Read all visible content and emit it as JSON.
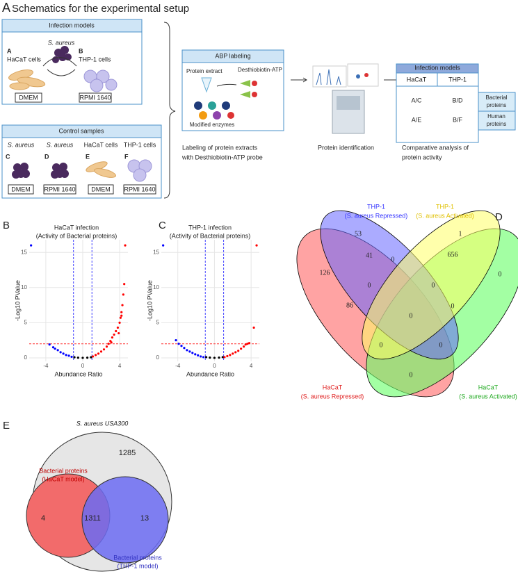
{
  "panel_a": {
    "letter": "A",
    "title": "Schematics for the experimental setup",
    "infection": {
      "header": "Infection models",
      "a": "A",
      "b": "B",
      "hacat": "HaCaT cells",
      "saureus": "S. aureus",
      "thp1": "THP-1 cells",
      "dmem": "DMEM",
      "rpmi": "RPMI 1640"
    },
    "control": {
      "header": "Control samples",
      "letters": [
        "C",
        "D",
        "E",
        "F"
      ],
      "names": [
        "S. aureus",
        "S. aureus",
        "HaCaT cells",
        "THP-1 cells"
      ],
      "media": [
        "DMEM",
        "RPMI 1640",
        "DMEM",
        "RPMI 1640"
      ]
    },
    "abp": {
      "header": "ABP labeling",
      "extract": "Protein extract",
      "probe": "Desthiobiotin-ATP",
      "enzymes": "Modified enzymes",
      "caption": [
        "Labeling of protein extracts",
        "with Desthiobiotin-ATP probe"
      ]
    },
    "identification": "Protein identification",
    "table": {
      "header": "Infection models",
      "cols": [
        "HaCaT",
        "THP-1"
      ],
      "rows": [
        [
          "A/C",
          "B/D"
        ],
        [
          "A/E",
          "B/F"
        ]
      ],
      "side": [
        [
          "Bacterial",
          "proteins"
        ],
        [
          "Human",
          "proteins"
        ]
      ]
    },
    "comparative": [
      "Comparative analysis of",
      "protein activity"
    ]
  },
  "volcanoes": [
    {
      "type": "scatter",
      "letter": "B",
      "title": [
        "HaCaT infection",
        "(Activity of Bacterial proteins)"
      ],
      "xlabel": "Abundance Ratio",
      "ylabel": "-Log10 PValue",
      "xlim": [
        -5.8,
        4.9
      ],
      "ylim": [
        -0.5,
        16.8
      ],
      "xticks": [
        -4,
        0,
        4
      ],
      "yticks": [
        0,
        5,
        10,
        15
      ],
      "grid": true,
      "thresholds": {
        "x": [
          -1,
          1
        ],
        "y": 2
      },
      "series": [
        {
          "color": "#0000ff",
          "x": [
            -5.6,
            -3.6,
            -3.2,
            -3,
            -2.7,
            -2.4,
            -2.1,
            -1.8,
            -1.5,
            -1.2
          ],
          "values": [
            16,
            1.9,
            1.5,
            1.3,
            1.1,
            0.8,
            0.6,
            0.4,
            0.3,
            0.15
          ]
        },
        {
          "color": "#000000",
          "x": [
            -0.9,
            -0.5,
            0,
            0.5,
            0.9
          ],
          "values": [
            0.08,
            0.02,
            0,
            0.02,
            0.08
          ]
        },
        {
          "color": "#ff0000",
          "x": [
            1.1,
            1.4,
            1.7,
            2,
            2.3,
            2.6,
            2.8,
            3,
            3.2,
            3.4,
            3.6,
            3.8,
            4,
            4.1,
            4.2,
            4.3,
            4.4,
            4.5,
            4.6,
            3.1,
            3.9,
            4.2
          ],
          "values": [
            0.2,
            0.4,
            0.6,
            0.9,
            1.2,
            1.6,
            2,
            2.4,
            2.9,
            3.3,
            3.8,
            4.3,
            5,
            5.7,
            6.5,
            7.5,
            9,
            10.5,
            16,
            2.2,
            3.5,
            6
          ]
        }
      ]
    },
    {
      "type": "scatter",
      "letter": "C",
      "title": [
        "THP-1 infection",
        "(Activity of Bacterial proteins)"
      ],
      "xlabel": "Abundance Ratio",
      "ylabel": "-Log10 PValue",
      "xlim": [
        -5.8,
        4.9
      ],
      "ylim": [
        -0.5,
        16.8
      ],
      "xticks": [
        -4,
        0,
        4
      ],
      "yticks": [
        0,
        5,
        10,
        15
      ],
      "grid": true,
      "thresholds": {
        "x": [
          -1,
          1
        ],
        "y": 2
      },
      "series": [
        {
          "color": "#0000ff",
          "x": [
            -5.6,
            -4.2,
            -3.9,
            -3.6,
            -3.3,
            -3,
            -2.7,
            -2.4,
            -2.1,
            -1.8,
            -1.5,
            -1.2
          ],
          "values": [
            16,
            2.5,
            2,
            1.7,
            1.4,
            1.1,
            0.9,
            0.7,
            0.5,
            0.35,
            0.2,
            0.1
          ]
        },
        {
          "color": "#000000",
          "x": [
            -0.9,
            -0.5,
            0,
            0.5,
            0.9
          ],
          "values": [
            0.1,
            0.03,
            0,
            0.03,
            0.1
          ]
        },
        {
          "color": "#ff0000",
          "x": [
            1.1,
            1.4,
            1.7,
            2,
            2.3,
            2.6,
            2.9,
            3.2,
            3.4,
            3.6,
            3.8,
            4.3,
            4.6
          ],
          "values": [
            0.1,
            0.25,
            0.4,
            0.6,
            0.8,
            1,
            1.3,
            1.6,
            1.9,
            2,
            2.1,
            4.3,
            16
          ]
        }
      ]
    }
  ],
  "panel_d": {
    "letter": "D",
    "labels": [
      [
        "THP-1",
        "(S. aureus Repressed)"
      ],
      [
        "THP-1",
        "(S. aureus Activated)"
      ],
      [
        "HaCaT",
        "(S. aureus Repressed)"
      ],
      [
        "HaCaT",
        "(S. aureus Activated)"
      ]
    ],
    "counts": [
      53,
      1,
      126,
      41,
      0,
      656,
      0,
      0,
      0,
      86,
      0,
      0,
      0,
      0,
      0
    ]
  },
  "panel_e": {
    "letter": "E",
    "title": "S. aureus USA300",
    "hacat": [
      "Bacterial proteins",
      "(HaCaT model)"
    ],
    "thp1": [
      "Bacterial proteins",
      "(THP-1 model)"
    ],
    "counts": {
      "outside": 1285,
      "hacat_only": 4,
      "both": 1311,
      "thp1_only": 13
    }
  }
}
